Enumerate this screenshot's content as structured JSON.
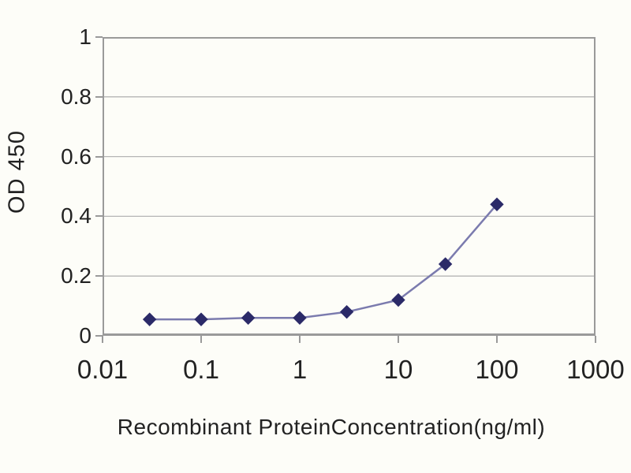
{
  "chart_data": {
    "type": "line",
    "title": "",
    "xlabel": "Recombinant ProteinConcentration(ng/ml)",
    "ylabel": "OD 450",
    "x_scale": "log",
    "xlim": [
      0.01,
      1000
    ],
    "ylim": [
      0,
      1
    ],
    "x_tick_labels": [
      "0.01",
      "0.1",
      "1",
      "10",
      "100",
      "1000"
    ],
    "x_tick_values": [
      0.01,
      0.1,
      1,
      10,
      100,
      1000
    ],
    "y_tick_labels": [
      "1",
      "0.8",
      "0.6",
      "0.4",
      "0.2",
      "0"
    ],
    "y_tick_values": [
      1,
      0.8,
      0.6,
      0.4,
      0.2,
      0
    ],
    "grid": true,
    "legend": false,
    "series": [
      {
        "name": "OD 450",
        "marker": "diamond",
        "x": [
          0.03,
          0.1,
          0.3,
          1,
          3,
          10,
          30,
          100
        ],
        "values": [
          0.055,
          0.055,
          0.06,
          0.06,
          0.08,
          0.12,
          0.24,
          0.44
        ]
      }
    ],
    "colors": {
      "line": "#7b7bae",
      "marker": "#2b2a68",
      "grid": "#b5b5b5",
      "axis_border": "#9a9a9a",
      "text": "#222222",
      "background": "#fdfdf8"
    }
  }
}
